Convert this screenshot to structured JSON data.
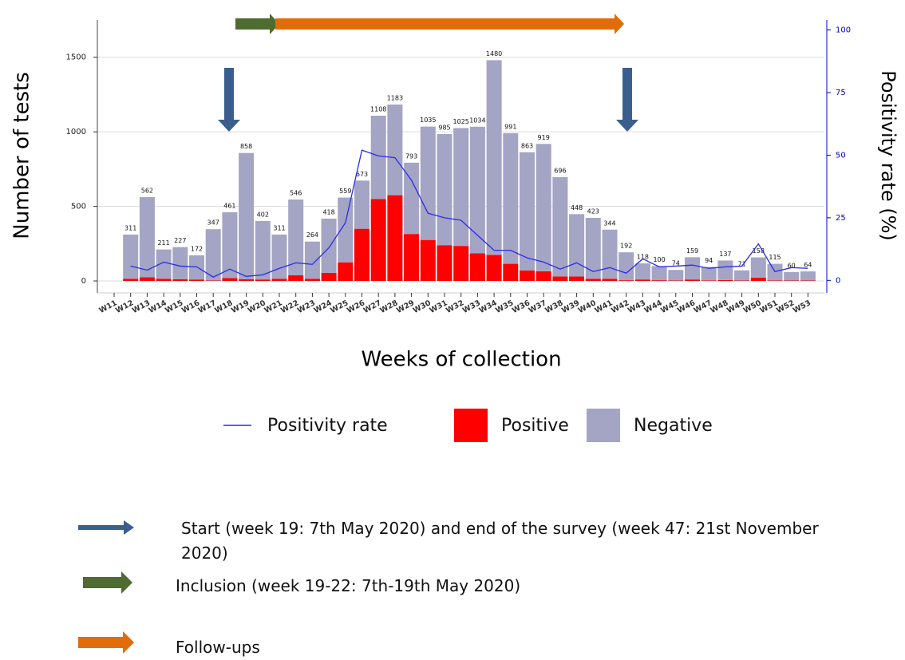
{
  "chart_data": {
    "type": "bar",
    "stacked": true,
    "x_label": "Weeks of collection",
    "y_label": "Number of tests",
    "y2_label": "Positivity rate (%)",
    "categories": [
      "W11",
      "W12",
      "W13",
      "W14",
      "W15",
      "W16",
      "W17",
      "W18",
      "W19",
      "W20",
      "W21",
      "W22",
      "W23",
      "W24",
      "W25",
      "W26",
      "W27",
      "W28",
      "W29",
      "W30",
      "W31",
      "W32",
      "W33",
      "W34",
      "W35",
      "W36",
      "W37",
      "W38",
      "W39",
      "W40",
      "W41",
      "W42",
      "W43",
      "W44",
      "W45",
      "W46",
      "W47",
      "W48",
      "W49",
      "W50",
      "W51",
      "W52",
      "W53"
    ],
    "series": [
      {
        "name": "Positivity rate",
        "type": "line",
        "axis": "y2",
        "color": "#2a2aee",
        "values": [
          null,
          5.7,
          4.1,
          7.3,
          5.7,
          5.4,
          1.3,
          4.5,
          1.6,
          2.2,
          4.8,
          7.0,
          6.4,
          13,
          23,
          52,
          49.7,
          49,
          40,
          26.8,
          25,
          24,
          18,
          12,
          12,
          9,
          7.3,
          4.5,
          7,
          3.5,
          5.1,
          2.9,
          8.6,
          5.4,
          5.7,
          6.1,
          4.8,
          5.4,
          5.7,
          14.6,
          3.5,
          5.1,
          4.8
        ]
      },
      {
        "name": "Positive",
        "color": "#ff0000",
        "values": [
          null,
          15,
          25,
          15,
          12,
          10,
          3,
          20,
          12,
          10,
          15,
          38,
          15,
          55,
          125,
          350,
          550,
          575,
          315,
          275,
          240,
          235,
          185,
          175,
          115,
          70,
          65,
          30,
          30,
          15,
          15,
          5,
          10,
          5,
          3,
          10,
          4,
          6,
          3,
          22,
          4,
          3,
          3
        ]
      },
      {
        "name": "Negative",
        "color": "#a4a4c4",
        "values": [
          null,
          296,
          537,
          196,
          215,
          162,
          344,
          441,
          846,
          392,
          296,
          508,
          249,
          363,
          434,
          323,
          558,
          608,
          478,
          760,
          745,
          790,
          849,
          1305,
          876,
          793,
          854,
          666,
          418,
          408,
          329,
          187,
          108,
          95,
          71,
          149,
          90,
          131,
          68,
          136,
          111,
          57,
          61
        ]
      }
    ],
    "totals": [
      null,
      311,
      562,
      211,
      227,
      172,
      347,
      461,
      858,
      402,
      311,
      546,
      264,
      418,
      559,
      673,
      1108,
      1183,
      793,
      1035,
      985,
      1025,
      1034,
      1480,
      991,
      863,
      919,
      696,
      448,
      423,
      344,
      192,
      118,
      100,
      74,
      159,
      94,
      137,
      71,
      158,
      115,
      60,
      64
    ],
    "ylim": [
      -80,
      1750
    ],
    "yticks": [
      0,
      500,
      1000,
      1500
    ],
    "y2lim": [
      -5,
      104
    ],
    "y2ticks": [
      0,
      25,
      50,
      75,
      100
    ],
    "grid": true
  },
  "notes": [
    "Start (week 19: 7th May 2020) and end of the survey (week 47: 21st November 2020)",
    "Inclusion (week 19-22: 7th-19th May 2020)",
    "Follow-ups"
  ]
}
